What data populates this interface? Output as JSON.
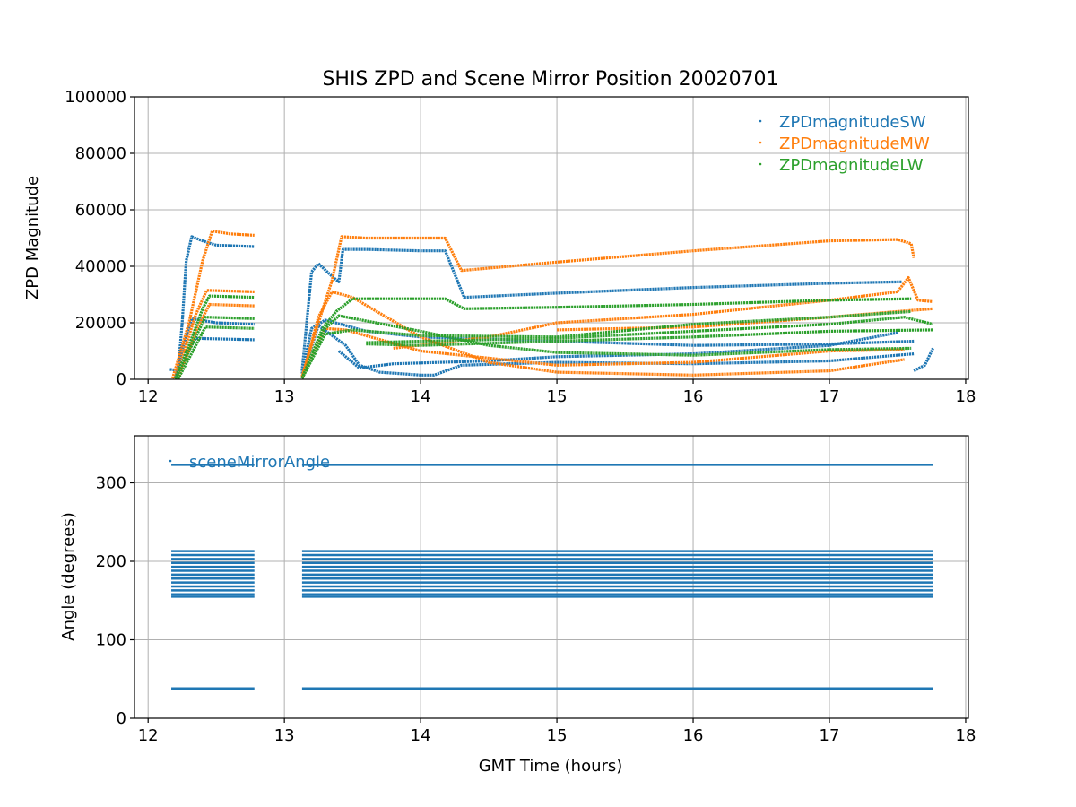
{
  "chart_data": [
    {
      "type": "scatter",
      "title": "SHIS ZPD and Scene Mirror Position 20020701",
      "xlabel": "",
      "ylabel": "ZPD Magnitude",
      "xlim": [
        11.9,
        18.02
      ],
      "ylim": [
        0,
        100000
      ],
      "xticks": [
        12,
        13,
        14,
        15,
        16,
        17,
        18
      ],
      "yticks": [
        0,
        20000,
        40000,
        60000,
        80000,
        100000
      ],
      "grid": true,
      "legend": "top-right",
      "series": [
        {
          "name": "ZPDmagnitudeSW",
          "color": "#1f77b4",
          "tracks": [
            [
              [
                12.16,
                3500
              ],
              [
                12.22,
                3200
              ],
              [
                12.25,
                20000
              ],
              [
                12.28,
                42000
              ],
              [
                12.32,
                50500
              ],
              [
                12.4,
                49000
              ],
              [
                12.5,
                47500
              ],
              [
                12.78,
                47000
              ]
            ],
            [
              [
                12.2,
                500
              ],
              [
                12.26,
                12000
              ],
              [
                12.32,
                21500
              ],
              [
                12.5,
                20000
              ],
              [
                12.78,
                19500
              ]
            ],
            [
              [
                12.2,
                300
              ],
              [
                12.28,
                9000
              ],
              [
                12.35,
                14500
              ],
              [
                12.78,
                14000
              ]
            ],
            [
              [
                13.13,
                3000
              ],
              [
                13.2,
                38000
              ],
              [
                13.25,
                41000
              ],
              [
                13.36,
                36000
              ],
              [
                13.4,
                34500
              ],
              [
                13.43,
                46000
              ],
              [
                13.6,
                46000
              ],
              [
                14.0,
                45500
              ],
              [
                14.18,
                45500
              ],
              [
                14.32,
                29000
              ],
              [
                15.0,
                30500
              ],
              [
                16.0,
                32500
              ],
              [
                17.0,
                34000
              ],
              [
                17.53,
                34500
              ]
            ],
            [
              [
                13.13,
                2000
              ],
              [
                13.2,
                18000
              ],
              [
                13.3,
                21000
              ],
              [
                13.45,
                19000
              ],
              [
                13.6,
                17000
              ],
              [
                14.0,
                15000
              ],
              [
                15.0,
                13500
              ],
              [
                16.0,
                12000
              ],
              [
                17.0,
                12500
              ],
              [
                17.62,
                13500
              ]
            ],
            [
              [
                13.13,
                1000
              ],
              [
                13.25,
                19000
              ],
              [
                13.45,
                12000
              ],
              [
                13.55,
                5000
              ],
              [
                13.7,
                2500
              ],
              [
                14.0,
                1500
              ],
              [
                14.1,
                1500
              ],
              [
                14.3,
                5000
              ],
              [
                15.0,
                6000
              ],
              [
                16.0,
                5500
              ],
              [
                17.0,
                6500
              ],
              [
                17.62,
                9000
              ]
            ],
            [
              [
                13.4,
                10000
              ],
              [
                13.55,
                4000
              ],
              [
                13.8,
                5500
              ],
              [
                14.5,
                6500
              ],
              [
                15.0,
                8000
              ],
              [
                16.0,
                9000
              ],
              [
                17.0,
                12000
              ],
              [
                17.5,
                16500
              ]
            ],
            [
              [
                17.62,
                3000
              ],
              [
                17.7,
                5000
              ],
              [
                17.76,
                11000
              ]
            ]
          ]
        },
        {
          "name": "ZPDmagnitudeMW",
          "color": "#ff7f0e",
          "tracks": [
            [
              [
                12.18,
                300
              ],
              [
                12.3,
                20000
              ],
              [
                12.4,
                42000
              ],
              [
                12.47,
                52500
              ],
              [
                12.6,
                51500
              ],
              [
                12.78,
                51000
              ]
            ],
            [
              [
                12.2,
                200
              ],
              [
                12.35,
                23000
              ],
              [
                12.43,
                31500
              ],
              [
                12.78,
                31000
              ]
            ],
            [
              [
                12.22,
                200
              ],
              [
                12.36,
                18000
              ],
              [
                12.45,
                26500
              ],
              [
                12.78,
                26000
              ]
            ],
            [
              [
                13.13,
                1000
              ],
              [
                13.25,
                20000
              ],
              [
                13.35,
                35000
              ],
              [
                13.42,
                50500
              ],
              [
                13.6,
                50000
              ],
              [
                14.18,
                50000
              ],
              [
                14.3,
                38500
              ],
              [
                15.0,
                41500
              ],
              [
                16.0,
                45500
              ],
              [
                17.0,
                49000
              ],
              [
                17.5,
                49500
              ],
              [
                17.6,
                48000
              ],
              [
                17.62,
                43000
              ]
            ],
            [
              [
                13.13,
                500
              ],
              [
                13.25,
                22000
              ],
              [
                13.35,
                31000
              ],
              [
                13.5,
                29000
              ],
              [
                14.0,
                15000
              ],
              [
                14.5,
                6000
              ],
              [
                15.0,
                2500
              ],
              [
                16.0,
                1500
              ],
              [
                17.0,
                3000
              ],
              [
                17.55,
                7000
              ]
            ],
            [
              [
                13.13,
                300
              ],
              [
                13.3,
                18000
              ],
              [
                13.45,
                17500
              ],
              [
                14.0,
                10000
              ],
              [
                15.0,
                5000
              ],
              [
                16.0,
                6000
              ],
              [
                17.0,
                10000
              ],
              [
                17.55,
                10500
              ]
            ],
            [
              [
                13.8,
                11000
              ],
              [
                14.5,
                15000
              ],
              [
                15.0,
                20000
              ],
              [
                16.0,
                23000
              ],
              [
                17.0,
                28000
              ],
              [
                17.5,
                31000
              ],
              [
                17.58,
                36000
              ],
              [
                17.65,
                28000
              ],
              [
                17.76,
                27500
              ]
            ],
            [
              [
                15.0,
                17500
              ],
              [
                16.0,
                18500
              ],
              [
                17.0,
                22000
              ],
              [
                17.5,
                24000
              ],
              [
                17.76,
                25000
              ]
            ]
          ]
        },
        {
          "name": "ZPDmagnitudeLW",
          "color": "#2ca02c",
          "tracks": [
            [
              [
                12.2,
                300
              ],
              [
                12.3,
                12000
              ],
              [
                12.4,
                25000
              ],
              [
                12.45,
                29500
              ],
              [
                12.78,
                29000
              ]
            ],
            [
              [
                12.2,
                200
              ],
              [
                12.3,
                10000
              ],
              [
                12.42,
                22000
              ],
              [
                12.78,
                21500
              ]
            ],
            [
              [
                12.22,
                100
              ],
              [
                12.35,
                12000
              ],
              [
                12.42,
                18500
              ],
              [
                12.78,
                18000
              ]
            ],
            [
              [
                13.13,
                400
              ],
              [
                13.28,
                18000
              ],
              [
                13.38,
                24000
              ],
              [
                13.5,
                28500
              ],
              [
                14.18,
                28500
              ],
              [
                14.32,
                25000
              ],
              [
                15.0,
                25500
              ],
              [
                16.0,
                26500
              ],
              [
                17.0,
                28000
              ],
              [
                17.6,
                28500
              ]
            ],
            [
              [
                13.13,
                400
              ],
              [
                13.3,
                18000
              ],
              [
                13.4,
                22500
              ],
              [
                14.0,
                17000
              ],
              [
                14.5,
                12000
              ],
              [
                15.0,
                9500
              ],
              [
                16.0,
                8500
              ],
              [
                17.0,
                10500
              ],
              [
                17.6,
                11000
              ]
            ],
            [
              [
                13.13,
                300
              ],
              [
                13.3,
                16000
              ],
              [
                13.5,
                17500
              ],
              [
                14.0,
                15500
              ],
              [
                15.0,
                15000
              ],
              [
                16.0,
                19500
              ],
              [
                17.0,
                22000
              ],
              [
                17.6,
                24000
              ]
            ],
            [
              [
                13.6,
                13000
              ],
              [
                14.0,
                13500
              ],
              [
                15.0,
                14500
              ],
              [
                16.0,
                17000
              ],
              [
                17.0,
                19500
              ],
              [
                17.55,
                22000
              ],
              [
                17.76,
                19500
              ]
            ],
            [
              [
                13.6,
                12500
              ],
              [
                14.0,
                12000
              ],
              [
                15.0,
                13500
              ],
              [
                16.0,
                15000
              ],
              [
                17.0,
                17000
              ],
              [
                17.76,
                17500
              ]
            ]
          ]
        }
      ]
    },
    {
      "type": "scatter",
      "title": "",
      "xlabel": "GMT Time (hours)",
      "ylabel": "Angle (degrees)",
      "xlim": [
        11.9,
        18.02
      ],
      "ylim": [
        0,
        360
      ],
      "xticks": [
        12,
        13,
        14,
        15,
        16,
        17,
        18
      ],
      "yticks": [
        0,
        100,
        200,
        300
      ],
      "grid": true,
      "legend": "top-left",
      "series": [
        {
          "name": "sceneMirrorAngle",
          "color": "#1f77b4",
          "segments": [
            [
              12.17,
              12.78
            ],
            [
              13.13,
              17.76
            ]
          ],
          "levels": [
            323,
            213,
            208,
            203,
            198,
            193,
            188,
            183,
            178,
            173,
            168,
            163,
            158,
            155,
            38
          ]
        }
      ]
    }
  ]
}
